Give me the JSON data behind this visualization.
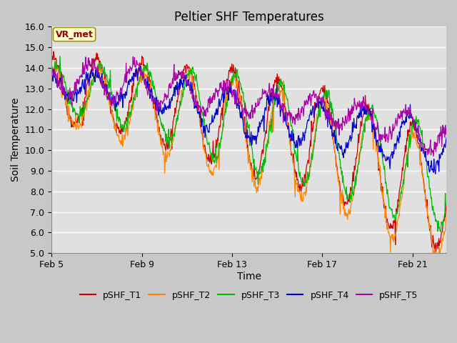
{
  "title": "Peltier SHF Temperatures",
  "xlabel": "Time",
  "ylabel": "Soil Temperature",
  "ylim": [
    5.0,
    16.0
  ],
  "yticks": [
    5.0,
    6.0,
    7.0,
    8.0,
    9.0,
    10.0,
    11.0,
    12.0,
    13.0,
    14.0,
    15.0,
    16.0
  ],
  "xtick_labels": [
    "Feb 5",
    "Feb 9",
    "Feb 13",
    "Feb 17",
    "Feb 21"
  ],
  "xtick_pos": [
    0,
    4,
    8,
    12,
    16
  ],
  "xlim": [
    0,
    17.5
  ],
  "series_colors": [
    "#cc0000",
    "#ff8800",
    "#00bb00",
    "#0000cc",
    "#aa00aa"
  ],
  "series_names": [
    "pSHF_T1",
    "pSHF_T2",
    "pSHF_T3",
    "pSHF_T4",
    "pSHF_T5"
  ],
  "annotation_text": "VR_met",
  "annotation_bg": "#ffffcc",
  "annotation_border": "#999900",
  "fig_bg": "#c8c8c8",
  "plot_bg": "#e0e0e0",
  "title_fontsize": 12,
  "axis_label_fontsize": 10,
  "tick_fontsize": 9,
  "legend_fontsize": 9,
  "n_points": 800
}
